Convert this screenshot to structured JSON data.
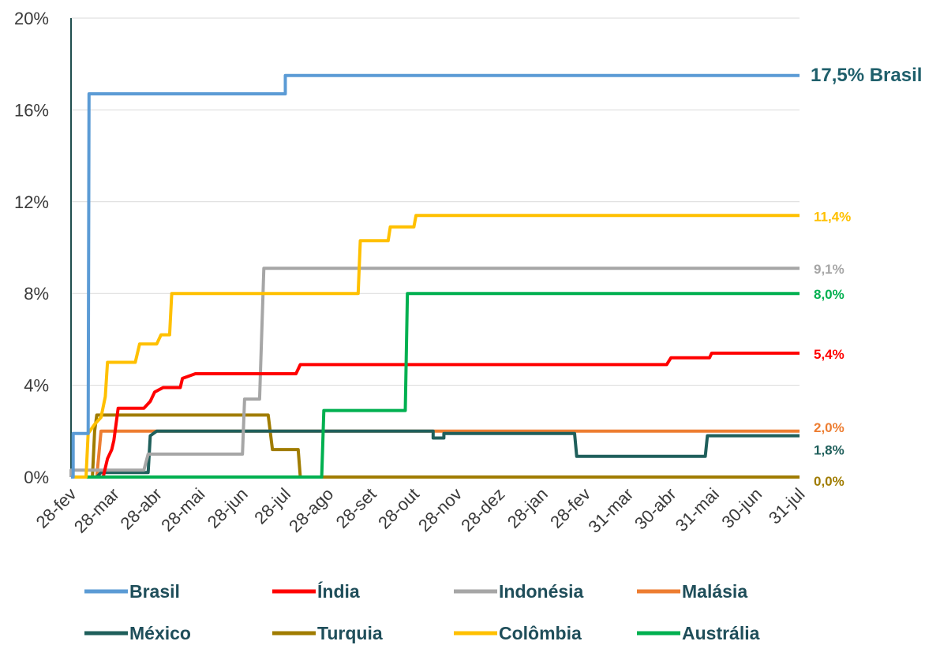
{
  "chart_data": {
    "type": "line",
    "step": true,
    "x_categories": [
      "28-fev",
      "28-mar",
      "28-abr",
      "28-mai",
      "28-jun",
      "28-jul",
      "28-ago",
      "28-set",
      "28-out",
      "28-nov",
      "28-dez",
      "28-jan",
      "28-fev",
      "31-mar",
      "30-abr",
      "31-mai",
      "30-jun",
      "31-jul"
    ],
    "y_ticks": [
      "0%",
      "4%",
      "8%",
      "12%",
      "16%",
      "20%"
    ],
    "ylim": [
      0,
      20
    ],
    "grid": true,
    "legend_position": "bottom",
    "series": [
      {
        "name": "Brasil",
        "color": "#5b9bd5",
        "end_label": "17,5%  Brasil",
        "end_label_color": "#1f5f6b",
        "points": [
          [
            0,
            0
          ],
          [
            0.05,
            0
          ],
          [
            0.05,
            1.9
          ],
          [
            0.4,
            1.9
          ],
          [
            0.42,
            16.7
          ],
          [
            5.0,
            16.7
          ],
          [
            5.0,
            17.5
          ],
          [
            17,
            17.5
          ]
        ]
      },
      {
        "name": "Índia",
        "color": "#ff0000",
        "end_label": "5,4%",
        "end_label_color": "#ff0000",
        "points": [
          [
            0,
            0
          ],
          [
            0.75,
            0
          ],
          [
            0.85,
            0.8
          ],
          [
            0.95,
            1.2
          ],
          [
            1.0,
            1.6
          ],
          [
            1.05,
            2.3
          ],
          [
            1.1,
            3.0
          ],
          [
            1.7,
            3.0
          ],
          [
            1.85,
            3.3
          ],
          [
            1.95,
            3.7
          ],
          [
            2.15,
            3.9
          ],
          [
            2.55,
            3.9
          ],
          [
            2.6,
            4.3
          ],
          [
            2.9,
            4.5
          ],
          [
            5.25,
            4.5
          ],
          [
            5.35,
            4.9
          ],
          [
            13.9,
            4.9
          ],
          [
            14.0,
            5.2
          ],
          [
            14.9,
            5.2
          ],
          [
            14.95,
            5.4
          ],
          [
            17,
            5.4
          ]
        ]
      },
      {
        "name": "Indonésia",
        "color": "#a6a6a6",
        "end_label": "9,1%",
        "end_label_color": "#a6a6a6",
        "points": [
          [
            0,
            0
          ],
          [
            0.0,
            0.3
          ],
          [
            1.7,
            0.3
          ],
          [
            1.8,
            1.0
          ],
          [
            4.0,
            1.0
          ],
          [
            4.05,
            3.4
          ],
          [
            4.4,
            3.4
          ],
          [
            4.5,
            9.1
          ],
          [
            17,
            9.1
          ]
        ]
      },
      {
        "name": "Malásia",
        "color": "#ed7d31",
        "end_label": "2,0%",
        "end_label_color": "#ed7d31",
        "points": [
          [
            0,
            0
          ],
          [
            0.6,
            0
          ],
          [
            0.7,
            2.0
          ],
          [
            17,
            2.0
          ]
        ]
      },
      {
        "name": "México",
        "color": "#1f5f5b",
        "end_label": "1,8%",
        "end_label_color": "#1f5f5b",
        "points": [
          [
            0,
            0
          ],
          [
            0.6,
            0
          ],
          [
            0.7,
            0.2
          ],
          [
            1.8,
            0.2
          ],
          [
            1.85,
            1.8
          ],
          [
            2.0,
            2.0
          ],
          [
            8.45,
            2.0
          ],
          [
            8.45,
            1.7
          ],
          [
            8.7,
            1.7
          ],
          [
            8.7,
            1.9
          ],
          [
            11.75,
            1.9
          ],
          [
            11.8,
            0.9
          ],
          [
            14.8,
            0.9
          ],
          [
            14.85,
            1.8
          ],
          [
            17,
            1.8
          ]
        ]
      },
      {
        "name": "Turquia",
        "color": "#a07c00",
        "end_label": "0,0%",
        "end_label_color": "#a07c00",
        "points": [
          [
            0,
            0
          ],
          [
            0.5,
            0
          ],
          [
            0.55,
            2.0
          ],
          [
            0.6,
            2.7
          ],
          [
            4.6,
            2.7
          ],
          [
            4.7,
            1.2
          ],
          [
            5.3,
            1.2
          ],
          [
            5.35,
            0
          ],
          [
            17,
            0
          ]
        ]
      },
      {
        "name": "Colômbia",
        "color": "#ffc000",
        "end_label": "11,4%",
        "end_label_color": "#ffc000",
        "points": [
          [
            0,
            0
          ],
          [
            0.35,
            0
          ],
          [
            0.4,
            1.9
          ],
          [
            0.55,
            2.3
          ],
          [
            0.7,
            2.6
          ],
          [
            0.8,
            3.5
          ],
          [
            0.85,
            5.0
          ],
          [
            1.5,
            5.0
          ],
          [
            1.6,
            5.8
          ],
          [
            2.0,
            5.8
          ],
          [
            2.1,
            6.2
          ],
          [
            2.3,
            6.2
          ],
          [
            2.35,
            8.0
          ],
          [
            6.7,
            8.0
          ],
          [
            6.75,
            10.3
          ],
          [
            7.4,
            10.3
          ],
          [
            7.45,
            10.9
          ],
          [
            8.0,
            10.9
          ],
          [
            8.05,
            11.4
          ],
          [
            17,
            11.4
          ]
        ]
      },
      {
        "name": "Austrália",
        "color": "#00b050",
        "end_label": "8,0%",
        "end_label_color": "#00b050",
        "points": [
          [
            0,
            0
          ],
          [
            5.85,
            0
          ],
          [
            5.9,
            2.9
          ],
          [
            7.8,
            2.9
          ],
          [
            7.85,
            8.0
          ],
          [
            17,
            8.0
          ]
        ]
      }
    ]
  }
}
